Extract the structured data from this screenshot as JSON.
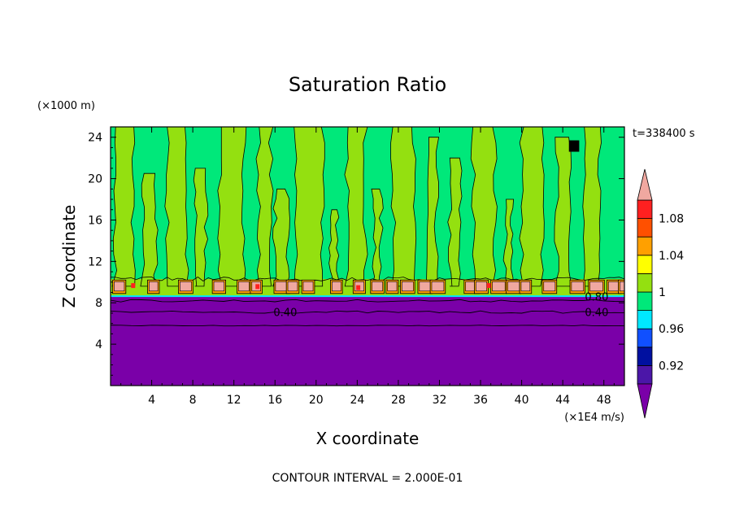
{
  "chart_data": {
    "type": "heatmap",
    "title": "Saturation Ratio",
    "xlabel": "X coordinate",
    "ylabel": "Z coordinate",
    "x_unit": "(×1E4 m/s)",
    "y_unit": "(×1000 m)",
    "time_label": "t=338400 s",
    "footer": "CONTOUR INTERVAL = 2.000E-01",
    "xlim": [
      0,
      50
    ],
    "ylim": [
      0,
      25
    ],
    "x_ticks": [
      4,
      8,
      12,
      16,
      20,
      24,
      28,
      32,
      36,
      40,
      44,
      48
    ],
    "y_ticks": [
      4,
      8,
      12,
      16,
      20,
      24
    ],
    "colorbar": {
      "labels": [
        "0.92",
        "0.96",
        "1",
        "1.04",
        "1.08"
      ],
      "levels": [
        0.9,
        0.92,
        0.94,
        0.96,
        0.98,
        1.0,
        1.02,
        1.04,
        1.06,
        1.08,
        1.1
      ],
      "colors": [
        "#7a00a8",
        "#4b16a8",
        "#0010a0",
        "#1050ff",
        "#00e8ff",
        "#00e87a",
        "#94e010",
        "#ffff00",
        "#ffa000",
        "#ff5000",
        "#ff2020",
        "#f0a8a0"
      ]
    },
    "contour_labels": [
      {
        "x": 17.0,
        "y": 7.1,
        "text": "0.40"
      },
      {
        "x": 47.3,
        "y": 8.6,
        "text": "0.80"
      },
      {
        "x": 47.3,
        "y": 7.1,
        "text": "0.40"
      }
    ],
    "fields": {
      "dry_layer_top": 8.6,
      "cloud_band": [
        8.6,
        10.3
      ],
      "green_layer_top": 25
    }
  }
}
